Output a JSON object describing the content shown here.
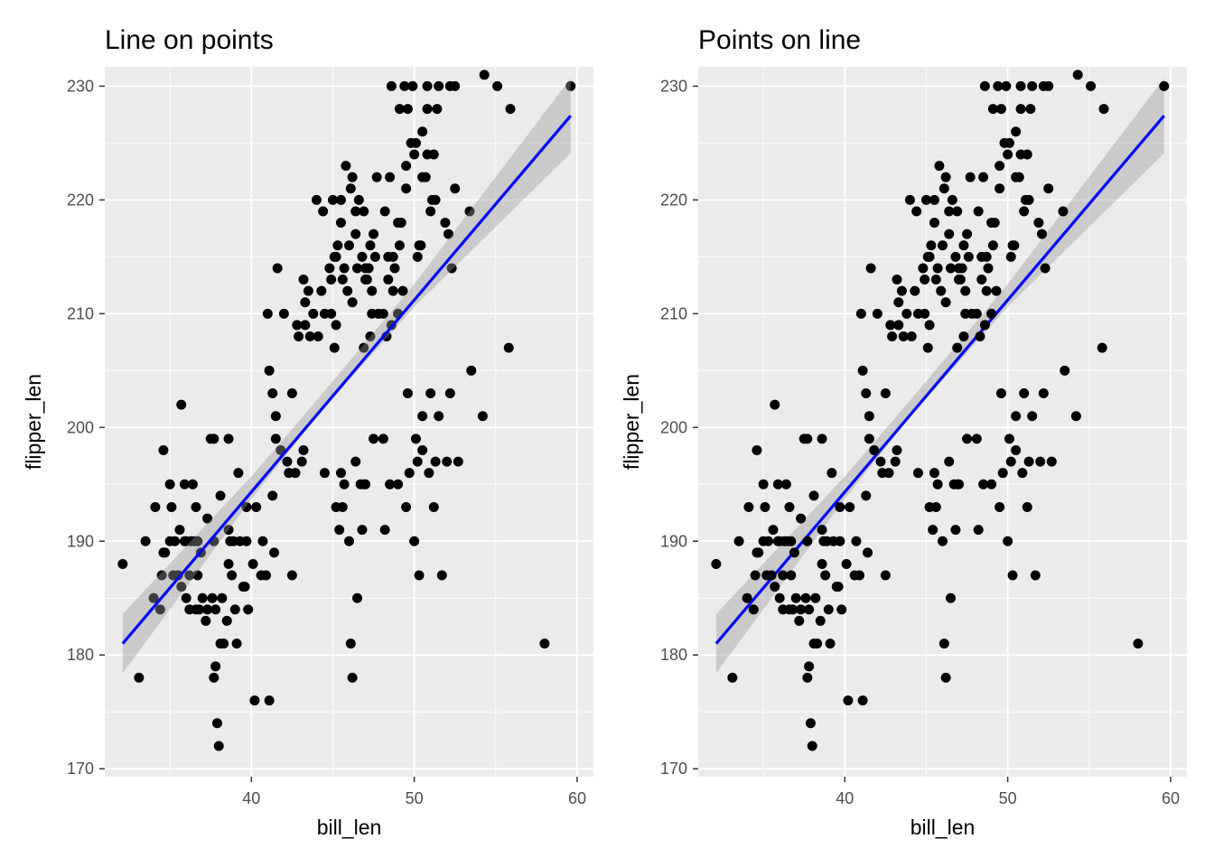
{
  "figure": {
    "panel_bg": "#ebebeb",
    "grid_major": "#ffffff",
    "point_color": "#000000",
    "line_color": "#0000ff",
    "band_color": "#999999"
  },
  "chart_data": [
    {
      "type": "scatter",
      "title": "Line on points",
      "xlabel": "bill_len",
      "ylabel": "flipper_len",
      "xlim": [
        31,
        61
      ],
      "ylim": [
        169.3,
        231.7
      ],
      "x_ticks": [
        40,
        50,
        60
      ],
      "x_tick_labels": [
        "40",
        "50",
        "60"
      ],
      "y_ticks": [
        170,
        180,
        190,
        200,
        210,
        220,
        230
      ],
      "y_tick_labels": [
        "170",
        "180",
        "190",
        "200",
        "210",
        "220",
        "230"
      ],
      "grid": true,
      "layer_order": "line-over-points",
      "fit": {
        "method": "linear",
        "x_range": [
          32.1,
          59.6
        ],
        "y_at_start": 181.0,
        "y_at_end": 227.4,
        "band": [
          [
            32.1,
            178.4,
            183.6
          ],
          [
            40,
            193.7,
            195.7
          ],
          [
            43.9,
            200.8,
            202.2
          ],
          [
            50,
            210.6,
            212.6
          ],
          [
            59.6,
            224.1,
            230.7
          ]
        ]
      },
      "points": [
        [
          32.1,
          188
        ],
        [
          33.1,
          178
        ],
        [
          33.5,
          190
        ],
        [
          34,
          185
        ],
        [
          34.1,
          193
        ],
        [
          34.4,
          184
        ],
        [
          34.5,
          187
        ],
        [
          34.6,
          198
        ],
        [
          34.6,
          189
        ],
        [
          34.7,
          189
        ],
        [
          35,
          190
        ],
        [
          35.1,
          193
        ],
        [
          35.2,
          187
        ],
        [
          35.3,
          190
        ],
        [
          35.5,
          187
        ],
        [
          35.6,
          191
        ],
        [
          35.7,
          202
        ],
        [
          35.7,
          186
        ],
        [
          35.9,
          190
        ],
        [
          35.9,
          195
        ],
        [
          35,
          195
        ],
        [
          36,
          190
        ],
        [
          36,
          185
        ],
        [
          36.2,
          187
        ],
        [
          36.2,
          184
        ],
        [
          36.3,
          190
        ],
        [
          36.4,
          195
        ],
        [
          36.5,
          190
        ],
        [
          36.6,
          184
        ],
        [
          36.6,
          193
        ],
        [
          36.7,
          187
        ],
        [
          36.7,
          190
        ],
        [
          36.8,
          184
        ],
        [
          36.9,
          189
        ],
        [
          37,
          185
        ],
        [
          37.2,
          183
        ],
        [
          37.3,
          184
        ],
        [
          37.3,
          192
        ],
        [
          37.5,
          199
        ],
        [
          37.6,
          185
        ],
        [
          37.7,
          190
        ],
        [
          37.7,
          178
        ],
        [
          37.7,
          199
        ],
        [
          37.8,
          179
        ],
        [
          37.8,
          184
        ],
        [
          37.9,
          174
        ],
        [
          38,
          172
        ],
        [
          38.1,
          181
        ],
        [
          38.1,
          194
        ],
        [
          38.2,
          185
        ],
        [
          38.3,
          181
        ],
        [
          38.5,
          183
        ],
        [
          38.6,
          188
        ],
        [
          38.6,
          191
        ],
        [
          38.6,
          199
        ],
        [
          38.7,
          190
        ],
        [
          38.8,
          187
        ],
        [
          38.9,
          190
        ],
        [
          39,
          184
        ],
        [
          39.1,
          181
        ],
        [
          39.2,
          196
        ],
        [
          39.3,
          190
        ],
        [
          39.5,
          186
        ],
        [
          39.6,
          186
        ],
        [
          39.7,
          193
        ],
        [
          39.7,
          190
        ],
        [
          39.8,
          184
        ],
        [
          40.1,
          188
        ],
        [
          40.2,
          176
        ],
        [
          40.3,
          193
        ],
        [
          40.6,
          187
        ],
        [
          40.7,
          190
        ],
        [
          40.9,
          187
        ],
        [
          41,
          210
        ],
        [
          41.1,
          176
        ],
        [
          41.3,
          194
        ],
        [
          41.4,
          189
        ],
        [
          41.5,
          201
        ],
        [
          41.8,
          198
        ],
        [
          42,
          210
        ],
        [
          42.2,
          197
        ],
        [
          42.3,
          196
        ],
        [
          42.5,
          187
        ],
        [
          42.7,
          196
        ],
        [
          42.8,
          209
        ],
        [
          43.1,
          197
        ],
        [
          43.2,
          198
        ],
        [
          44.1,
          208
        ],
        [
          44.5,
          196
        ],
        [
          45.2,
          193
        ],
        [
          45.4,
          191
        ],
        [
          45.5,
          196
        ],
        [
          45.6,
          193
        ],
        [
          45.7,
          195
        ],
        [
          46,
          190
        ],
        [
          46.1,
          181
        ],
        [
          46.2,
          178
        ],
        [
          46.4,
          197
        ],
        [
          46.5,
          185
        ],
        [
          46.7,
          195
        ],
        [
          46.8,
          191
        ],
        [
          46.9,
          195
        ],
        [
          47,
          195
        ],
        [
          47.5,
          199
        ],
        [
          48.1,
          199
        ],
        [
          48.2,
          191
        ],
        [
          48.5,
          195
        ],
        [
          49,
          195
        ],
        [
          49.5,
          193
        ],
        [
          49.7,
          196
        ],
        [
          50,
          190
        ],
        [
          50.1,
          199
        ],
        [
          50.2,
          197
        ],
        [
          50.3,
          187
        ],
        [
          50.5,
          198
        ],
        [
          50.9,
          196
        ],
        [
          51.2,
          193
        ],
        [
          51.3,
          197
        ],
        [
          51.7,
          187
        ],
        [
          52,
          197
        ],
        [
          52.7,
          197
        ],
        [
          53.5,
          205
        ],
        [
          49.6,
          203
        ],
        [
          50.5,
          201
        ],
        [
          51,
          203
        ],
        [
          51.5,
          201
        ],
        [
          52.2,
          203
        ],
        [
          54.2,
          201
        ],
        [
          55.8,
          207
        ],
        [
          58,
          181
        ],
        [
          41.1,
          205
        ],
        [
          41.3,
          203
        ],
        [
          41.5,
          199
        ],
        [
          41.6,
          214
        ],
        [
          42.5,
          203
        ],
        [
          43.2,
          213
        ],
        [
          43.5,
          212
        ],
        [
          43.8,
          210
        ],
        [
          44.4,
          219
        ],
        [
          44.9,
          213
        ],
        [
          45.1,
          215
        ],
        [
          45.2,
          209
        ],
        [
          45.5,
          218
        ],
        [
          45.8,
          223
        ],
        [
          46.2,
          211
        ],
        [
          46.5,
          214
        ],
        [
          46.8,
          215
        ],
        [
          47.2,
          214
        ],
        [
          47.3,
          216
        ],
        [
          47.5,
          217
        ],
        [
          47.6,
          215
        ],
        [
          47.7,
          222
        ],
        [
          48.2,
          219
        ],
        [
          48.4,
          215
        ],
        [
          48.5,
          222
        ],
        [
          48.7,
          212
        ],
        [
          48.8,
          214
        ],
        [
          49,
          210
        ],
        [
          49.1,
          216
        ],
        [
          49.2,
          218
        ],
        [
          49.3,
          212
        ],
        [
          49.5,
          221
        ],
        [
          49.8,
          225
        ],
        [
          50,
          224
        ],
        [
          50.2,
          215
        ],
        [
          50.4,
          216
        ],
        [
          50.7,
          222
        ],
        [
          50.8,
          228
        ],
        [
          51.1,
          220
        ],
        [
          51.4,
          228
        ],
        [
          51.5,
          230
        ],
        [
          52.1,
          217
        ],
        [
          52.5,
          221
        ],
        [
          53.4,
          219
        ],
        [
          54.3,
          231
        ],
        [
          55.1,
          230
        ],
        [
          55.9,
          228
        ],
        [
          59.6,
          230
        ],
        [
          45.3,
          216
        ],
        [
          46.1,
          221
        ],
        [
          46.6,
          220
        ],
        [
          47,
          214
        ],
        [
          48.4,
          213
        ],
        [
          49.6,
          228
        ],
        [
          49.9,
          230
        ],
        [
          50.1,
          225
        ],
        [
          50.5,
          226
        ],
        [
          52.2,
          230
        ],
        [
          52.5,
          230
        ],
        [
          49.4,
          230
        ],
        [
          50.8,
          230
        ],
        [
          48.6,
          230
        ],
        [
          49.1,
          228
        ],
        [
          45,
          220
        ],
        [
          43.3,
          209
        ],
        [
          44,
          220
        ],
        [
          46.4,
          217
        ],
        [
          47.4,
          212
        ],
        [
          46,
          216
        ],
        [
          46.9,
          219
        ],
        [
          47.8,
          210
        ],
        [
          45.6,
          213
        ],
        [
          48.1,
          210
        ],
        [
          45.9,
          212
        ],
        [
          44.3,
          212
        ],
        [
          47,
          213
        ],
        [
          46.2,
          222
        ],
        [
          49,
          218
        ],
        [
          48.7,
          215
        ],
        [
          45.5,
          220
        ],
        [
          44.8,
          214
        ],
        [
          46.4,
          219
        ],
        [
          47.3,
          208
        ],
        [
          44.5,
          210
        ],
        [
          42.9,
          208
        ],
        [
          45.1,
          207
        ],
        [
          43.6,
          208
        ],
        [
          46.9,
          207
        ],
        [
          44.9,
          210
        ],
        [
          45.7,
          214
        ],
        [
          48.3,
          208
        ],
        [
          45.2,
          215
        ],
        [
          43.3,
          211
        ],
        [
          47.1,
          213
        ],
        [
          49.5,
          223
        ],
        [
          50.8,
          224
        ],
        [
          51.3,
          220
        ],
        [
          51.9,
          218
        ],
        [
          50.3,
          216
        ],
        [
          51,
          219
        ],
        [
          47.4,
          210
        ],
        [
          48.6,
          209
        ],
        [
          51.2,
          224
        ],
        [
          52.3,
          214
        ],
        [
          50.5,
          222
        ]
      ]
    },
    {
      "type": "scatter",
      "title": "Points on line",
      "xlabel": "bill_len",
      "ylabel": "flipper_len",
      "xlim": [
        31,
        61
      ],
      "ylim": [
        169.3,
        231.7
      ],
      "x_ticks": [
        40,
        50,
        60
      ],
      "x_tick_labels": [
        "40",
        "50",
        "60"
      ],
      "y_ticks": [
        170,
        180,
        190,
        200,
        210,
        220,
        230
      ],
      "y_tick_labels": [
        "170",
        "180",
        "190",
        "200",
        "210",
        "220",
        "230"
      ],
      "grid": true,
      "layer_order": "points-over-line",
      "fit": {
        "method": "linear",
        "x_range": [
          32.1,
          59.6
        ],
        "y_at_start": 181.0,
        "y_at_end": 227.4,
        "band": [
          [
            32.1,
            178.4,
            183.6
          ],
          [
            40,
            193.7,
            195.7
          ],
          [
            43.9,
            200.8,
            202.2
          ],
          [
            50,
            210.6,
            212.6
          ],
          [
            59.6,
            224.1,
            230.7
          ]
        ]
      },
      "points_source": "same as panel 1"
    }
  ]
}
